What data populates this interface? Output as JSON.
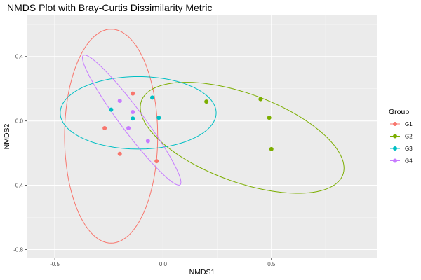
{
  "chart_data": {
    "type": "scatter",
    "title": "NMDS Plot with Bray-Curtis Dissimilarity Metric",
    "xlabel": "NMDS1",
    "ylabel": "NMDS2",
    "xlim": [
      -0.63,
      0.99
    ],
    "ylim": [
      -0.85,
      0.66
    ],
    "xticks": [
      -0.5,
      0.0,
      0.5
    ],
    "xtick_labels": [
      "-0.5",
      "0.0",
      "0.5"
    ],
    "yticks": [
      -0.8,
      -0.4,
      0.0,
      0.4
    ],
    "ytick_labels": [
      "-0.8",
      "-0.4",
      "0.0",
      "0.4"
    ],
    "grid": true,
    "legend": {
      "title": "Group",
      "placement": "right"
    },
    "series": [
      {
        "name": "G1",
        "color": "#F8766D",
        "points": [
          [
            -0.27,
            -0.045
          ],
          [
            -0.14,
            0.17
          ],
          [
            -0.2,
            -0.205
          ],
          [
            -0.03,
            -0.25
          ]
        ],
        "ellipse": {
          "center": [
            -0.24,
            -0.095
          ],
          "sx": 0.215,
          "sy": 0.665,
          "angle_deg": 0
        }
      },
      {
        "name": "G2",
        "color": "#7CAE00",
        "points": [
          [
            0.2,
            0.12
          ],
          [
            0.45,
            0.135
          ],
          [
            0.49,
            0.02
          ],
          [
            0.5,
            -0.175
          ]
        ],
        "ellipse": {
          "center": [
            0.365,
            -0.105
          ],
          "sx": 0.522,
          "sy": 0.26,
          "angle_deg": -30
        }
      },
      {
        "name": "G3",
        "color": "#00BFC4",
        "points": [
          [
            -0.24,
            0.07
          ],
          [
            -0.05,
            0.145
          ],
          [
            -0.14,
            0.015
          ],
          [
            -0.02,
            0.02
          ]
        ],
        "ellipse": {
          "center": [
            -0.115,
            0.05
          ],
          "sx": 0.36,
          "sy": 0.225,
          "angle_deg": 0
        }
      },
      {
        "name": "G4",
        "color": "#C77CFF",
        "points": [
          [
            -0.2,
            0.125
          ],
          [
            -0.14,
            0.055
          ],
          [
            -0.16,
            -0.045
          ],
          [
            -0.07,
            -0.125
          ]
        ],
        "ellipse": {
          "center": [
            -0.145,
            0.005
          ],
          "sx": 0.46,
          "sy": 0.058,
          "angle_deg": -61.2
        }
      }
    ]
  }
}
